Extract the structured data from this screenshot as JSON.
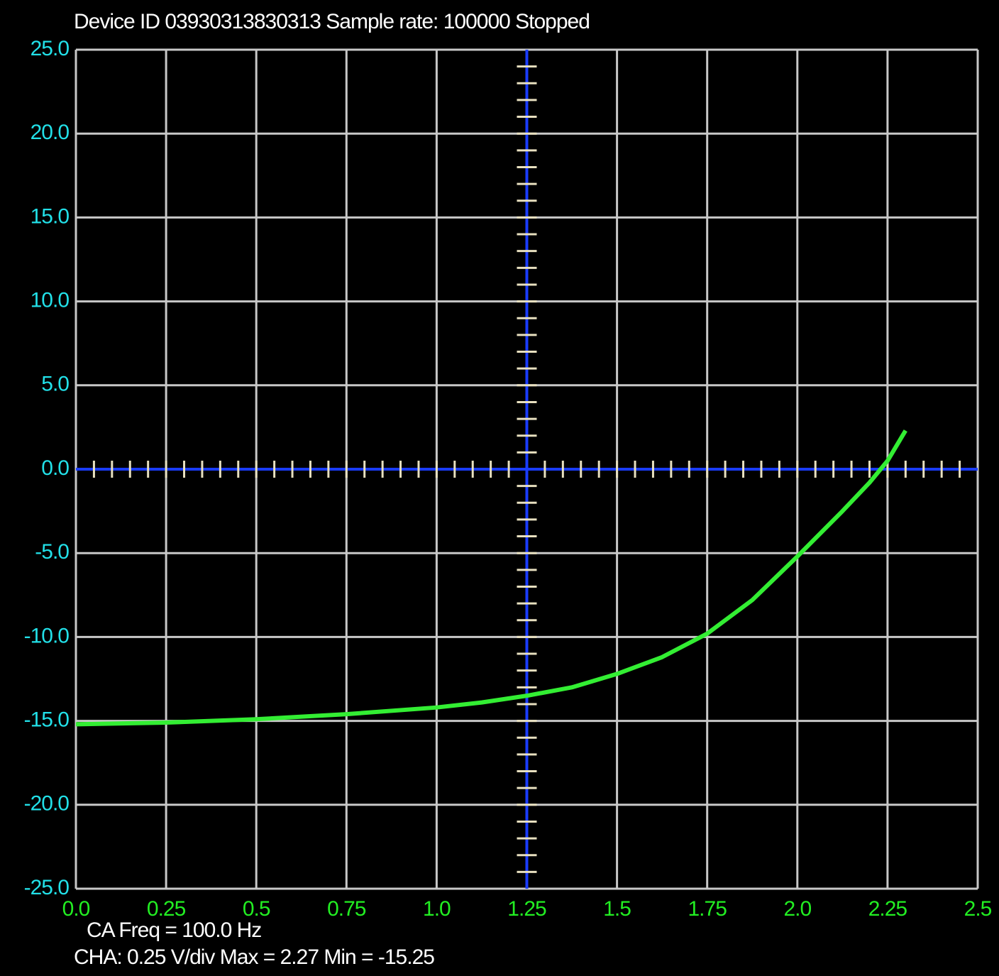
{
  "chart_data": {
    "type": "line",
    "title": "Device ID 03930313830313 Sample rate: 100000 Stopped",
    "annotations": [
      "CA Freq =  100.0  Hz",
      "CHA: 0.25 V/div Max =  2.27  Min =  -15.25"
    ],
    "x": [
      0,
      0.25,
      0.5,
      0.75,
      1.0,
      1.125,
      1.25,
      1.375,
      1.5,
      1.625,
      1.75,
      1.875,
      2.0,
      2.125,
      2.2,
      2.25,
      2.3
    ],
    "series": [
      {
        "color": "#33ee33",
        "values": [
          -15.2,
          -15.1,
          -14.9,
          -14.6,
          -14.2,
          -13.9,
          -13.5,
          -13.0,
          -12.2,
          -11.2,
          -9.8,
          -7.8,
          -5.2,
          -2.5,
          -0.8,
          0.5,
          2.3
        ]
      }
    ],
    "xlim": [
      0,
      2.5
    ],
    "xticks": [
      {
        "value": 0,
        "label": "0.0"
      },
      0.25,
      0.5,
      0.75,
      {
        "value": 1,
        "label": "1.0"
      },
      1.25,
      1.5,
      1.75,
      {
        "value": 2,
        "label": "2.0"
      },
      2.25,
      2.5
    ],
    "ylim": [
      -25,
      25
    ],
    "yticks": [
      {
        "value": 25,
        "label": "25.0"
      },
      {
        "value": 20,
        "label": "20.0"
      },
      {
        "value": 15,
        "label": "15.0"
      },
      {
        "value": 10,
        "label": "10.0"
      },
      {
        "value": 5,
        "label": "5.0"
      },
      {
        "value": 0,
        "label": "0.0"
      },
      {
        "value": -5,
        "label": "-5.0"
      },
      {
        "value": -10,
        "label": "-10.0"
      },
      {
        "value": -15,
        "label": "-15.0"
      },
      {
        "value": -20,
        "label": "-20.0"
      },
      {
        "value": -25,
        "label": "-25.0"
      }
    ],
    "grid": true
  }
}
